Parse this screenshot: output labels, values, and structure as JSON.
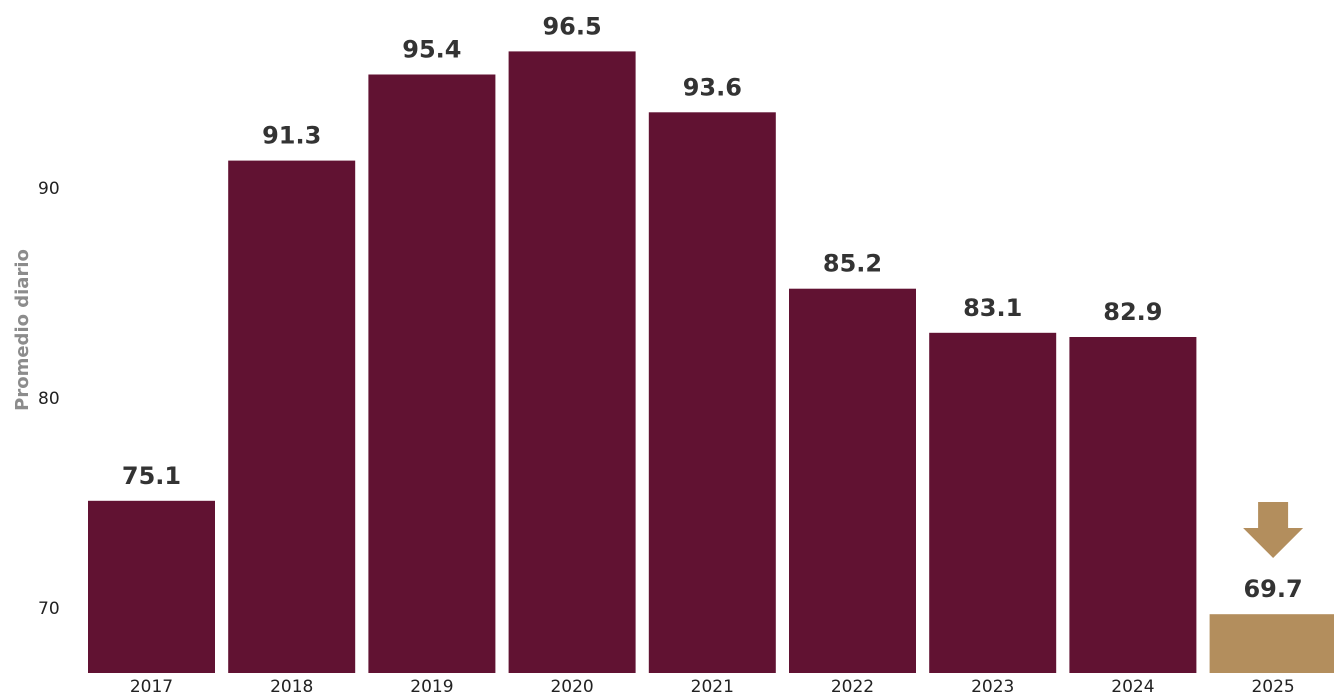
{
  "chart_data": {
    "type": "bar",
    "title": "",
    "xlabel": "",
    "ylabel": "Promedio diario",
    "categories": [
      "2017",
      "2018",
      "2019",
      "2020",
      "2021",
      "2022",
      "2023",
      "2024",
      "2025"
    ],
    "values": [
      75.1,
      91.3,
      95.4,
      96.5,
      93.6,
      85.2,
      83.1,
      82.9,
      69.7
    ],
    "value_labels": [
      "75.1",
      "91.3",
      "95.4",
      "96.5",
      "93.6",
      "85.2",
      "83.1",
      "82.9",
      "69.7"
    ],
    "yticks": [
      70,
      80,
      90
    ],
    "ytick_labels": [
      "70",
      "80",
      "90"
    ],
    "ylim": [
      66.9,
      99.0
    ],
    "grid": false,
    "legend": "none",
    "highlight_index": 8,
    "highlight_icon": "down-arrow-icon",
    "colors": {
      "bar": "#611232",
      "highlight": "#b38e5d",
      "value_text": "#333333",
      "axis_title": "#8c8c8c",
      "tick_text": "#222222"
    }
  }
}
